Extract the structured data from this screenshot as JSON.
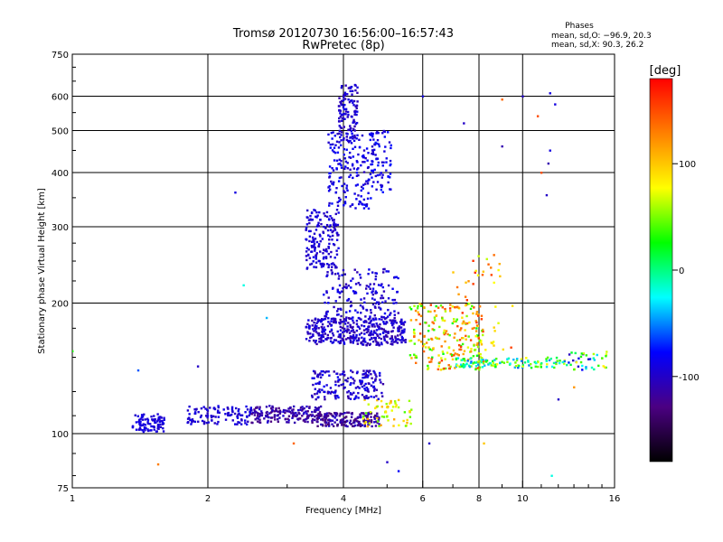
{
  "chart_data": {
    "type": "scatter",
    "title": "Tromsø 20120730 16:56:00–16:57:43",
    "subtitle": "RwPretec (8p)",
    "info": {
      "heading": "Phases",
      "line1": "mean, sd,O: −96.9, 20.3",
      "line2": "mean, sd,X:  90.3, 26.2"
    },
    "xlabel": "Frequency [MHz]",
    "ylabel": "Stationary phase Virtual Height [km]",
    "xscale": "log",
    "yscale": "log",
    "xlim": [
      1,
      16
    ],
    "ylim": [
      75,
      750
    ],
    "xticks": [
      1,
      2,
      4,
      6,
      8,
      10,
      16
    ],
    "yticks": [
      75,
      100,
      200,
      300,
      400,
      500,
      600,
      750
    ],
    "xgrid": [
      2,
      4,
      6,
      8,
      10
    ],
    "ygrid": [
      100,
      200,
      300,
      400,
      500,
      600
    ],
    "colorbar": {
      "label": "[deg]",
      "range": [
        -180,
        180
      ],
      "ticks": [
        100,
        0,
        -100
      ],
      "colors": [
        "#000000",
        "#4b0082",
        "#0000ff",
        "#00ffff",
        "#00ff00",
        "#ffff00",
        "#ff8000",
        "#ff0000"
      ]
    },
    "clusters": [
      {
        "f": [
          1.36,
          1.6
        ],
        "h": [
          101,
          111
        ],
        "phase": [
          -100,
          -85
        ],
        "n": 90
      },
      {
        "f": [
          1.8,
          2.5
        ],
        "h": [
          105,
          116
        ],
        "phase": [
          -105,
          -85
        ],
        "n": 110
      },
      {
        "f": [
          2.5,
          3.6
        ],
        "h": [
          106,
          116
        ],
        "phase": [
          -130,
          -95
        ],
        "n": 170
      },
      {
        "f": [
          3.5,
          4.8
        ],
        "h": [
          104,
          112
        ],
        "phase": [
          -140,
          -95
        ],
        "n": 180
      },
      {
        "f": [
          4.4,
          5.7
        ],
        "h": [
          104,
          120
        ],
        "phase": [
          40,
          120
        ],
        "n": 60
      },
      {
        "f": [
          3.4,
          4.9
        ],
        "h": [
          120,
          140
        ],
        "phase": [
          -115,
          -80
        ],
        "n": 180
      },
      {
        "f": [
          3.3,
          5.5
        ],
        "h": [
          160,
          185
        ],
        "phase": [
          -115,
          -85
        ],
        "n": 380
      },
      {
        "f": [
          3.6,
          5.3
        ],
        "h": [
          185,
          240
        ],
        "phase": [
          -110,
          -80
        ],
        "n": 160
      },
      {
        "f": [
          3.3,
          3.9
        ],
        "h": [
          240,
          330
        ],
        "phase": [
          -105,
          -85
        ],
        "n": 170
      },
      {
        "f": [
          3.7,
          4.6
        ],
        "h": [
          330,
          500
        ],
        "phase": [
          -105,
          -75
        ],
        "n": 170
      },
      {
        "f": [
          3.9,
          4.3
        ],
        "h": [
          470,
          650
        ],
        "phase": [
          -110,
          -85
        ],
        "n": 110
      },
      {
        "f": [
          4.6,
          5.1
        ],
        "h": [
          360,
          500
        ],
        "phase": [
          -100,
          -70
        ],
        "n": 80
      },
      {
        "f": [
          5.6,
          8.2
        ],
        "h": [
          140,
          200
        ],
        "phase": [
          20,
          160
        ],
        "n": 220
      },
      {
        "f": [
          7.0,
          12.5
        ],
        "h": [
          142,
          150
        ],
        "phase": [
          -60,
          80
        ],
        "n": 120
      },
      {
        "f": [
          12.5,
          15.5
        ],
        "h": [
          140,
          155
        ],
        "phase": [
          -105,
          100
        ],
        "n": 40
      },
      {
        "f": [
          7.0,
          9.5
        ],
        "h": [
          150,
          260
        ],
        "phase": [
          60,
          170
        ],
        "n": 60
      }
    ],
    "outliers": [
      {
        "f": 1.0,
        "h": 155,
        "phase": 30
      },
      {
        "f": 1.4,
        "h": 140,
        "phase": -60
      },
      {
        "f": 1.55,
        "h": 85,
        "phase": 130
      },
      {
        "f": 1.9,
        "h": 143,
        "phase": -100
      },
      {
        "f": 2.3,
        "h": 360,
        "phase": -90
      },
      {
        "f": 2.4,
        "h": 220,
        "phase": -20
      },
      {
        "f": 2.7,
        "h": 185,
        "phase": -40
      },
      {
        "f": 3.1,
        "h": 95,
        "phase": 140
      },
      {
        "f": 5.0,
        "h": 86,
        "phase": -100
      },
      {
        "f": 5.3,
        "h": 82,
        "phase": -80
      },
      {
        "f": 6.2,
        "h": 95,
        "phase": -100
      },
      {
        "f": 6.0,
        "h": 600,
        "phase": -90
      },
      {
        "f": 9.0,
        "h": 460,
        "phase": -110
      },
      {
        "f": 9.0,
        "h": 590,
        "phase": 140
      },
      {
        "f": 10.0,
        "h": 600,
        "phase": -100
      },
      {
        "f": 11.5,
        "h": 610,
        "phase": -90
      },
      {
        "f": 11.8,
        "h": 575,
        "phase": -90
      },
      {
        "f": 11.5,
        "h": 450,
        "phase": -90
      },
      {
        "f": 11.4,
        "h": 420,
        "phase": -110
      },
      {
        "f": 11.3,
        "h": 355,
        "phase": -100
      },
      {
        "f": 11.0,
        "h": 400,
        "phase": 150
      },
      {
        "f": 10.8,
        "h": 540,
        "phase": 150
      },
      {
        "f": 11.6,
        "h": 80,
        "phase": -20
      },
      {
        "f": 12.0,
        "h": 120,
        "phase": -100
      },
      {
        "f": 13.0,
        "h": 128,
        "phase": 120
      },
      {
        "f": 8.2,
        "h": 95,
        "phase": 100
      },
      {
        "f": 7.4,
        "h": 520,
        "phase": -100
      }
    ]
  }
}
